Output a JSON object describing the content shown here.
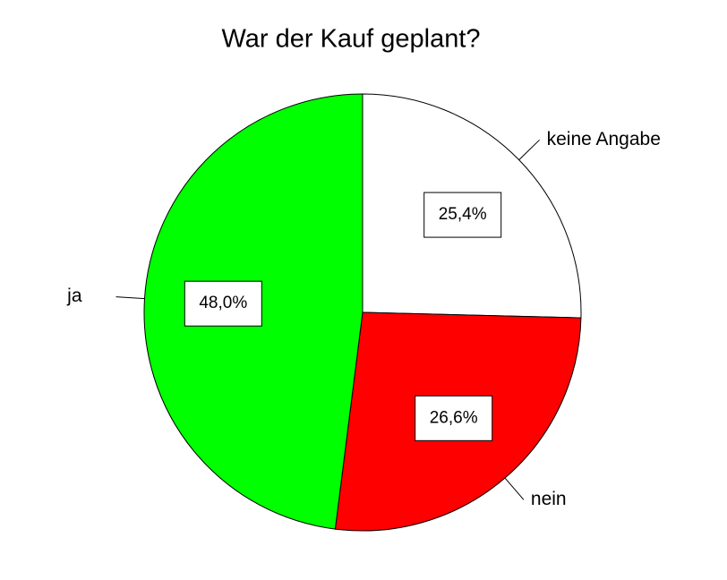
{
  "chart_data": {
    "type": "pie",
    "title": "War der Kauf geplant?",
    "categories": [
      "keine Angabe",
      "nein",
      "ja"
    ],
    "values": [
      25.4,
      26.6,
      48.0
    ],
    "value_labels": [
      "25,4%",
      "26,6%",
      "48,0%"
    ],
    "colors": [
      "#ffffff",
      "#ff0000",
      "#00ff00"
    ]
  }
}
